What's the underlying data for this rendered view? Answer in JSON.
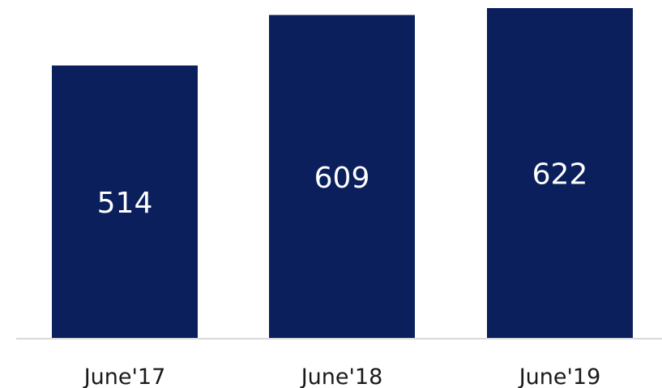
{
  "chart_data": {
    "type": "bar",
    "categories": [
      "June'17",
      "June'18",
      "June'19"
    ],
    "values": [
      514,
      609,
      622
    ],
    "data_labels": [
      "514",
      "609",
      "622"
    ],
    "ylim": [
      0,
      622
    ],
    "grid": false,
    "bar_color": "#0a1f5c",
    "axis_color": "#d9d9d9",
    "label_color": "#1a1a1a"
  }
}
